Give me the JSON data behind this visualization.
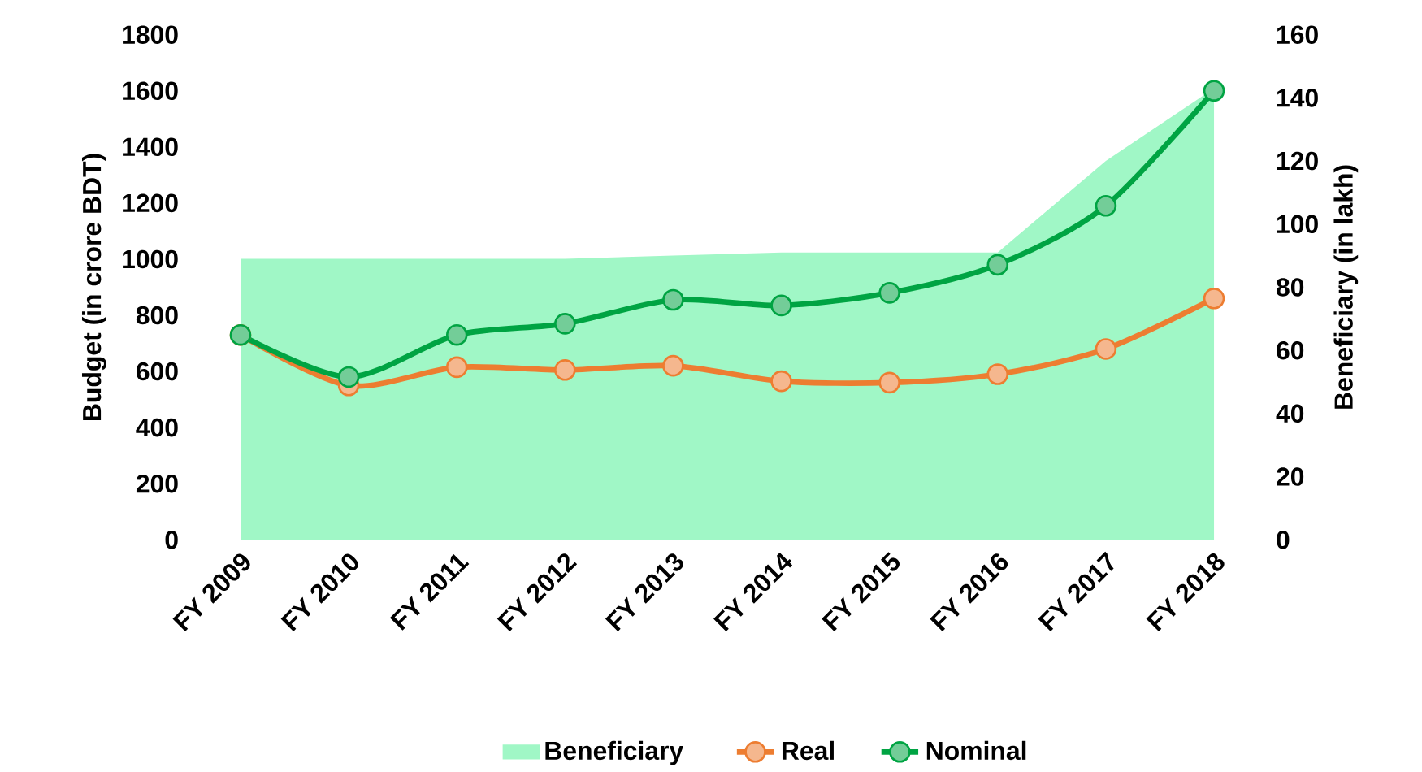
{
  "chart_data": {
    "type": "line",
    "categories": [
      "FY 2009",
      "FY 2010",
      "FY 2011",
      "FY 2012",
      "FY 2013",
      "FY 2014",
      "FY 2015",
      "FY 2016",
      "FY 2017",
      "FY 2018"
    ],
    "series": [
      {
        "name": "Beneficiary",
        "type": "area",
        "axis": "y2",
        "marker": "none",
        "color": "#a0f7c6",
        "values": [
          89,
          89,
          89,
          89,
          90,
          91,
          91,
          91,
          120,
          143
        ]
      },
      {
        "name": "Real",
        "color": "#ed7d31",
        "values": [
          730,
          550,
          615,
          605,
          620,
          565,
          560,
          590,
          680,
          860
        ]
      },
      {
        "name": "Nominal",
        "color": "#00a443",
        "values": [
          730,
          580,
          730,
          770,
          855,
          835,
          880,
          980,
          1190,
          1600
        ]
      }
    ],
    "ylabel": "Budget (in crore BDT)",
    "y2label": "Beneficiary (in lakh)",
    "ylim": [
      0,
      1800
    ],
    "yticks": [
      0,
      200,
      400,
      600,
      800,
      1000,
      1200,
      1400,
      1600,
      1800
    ],
    "y2lim": [
      0,
      160
    ],
    "y2ticks": [
      0,
      20,
      40,
      60,
      80,
      100,
      120,
      140,
      160
    ],
    "legend": "bottom",
    "marker": "circle"
  }
}
